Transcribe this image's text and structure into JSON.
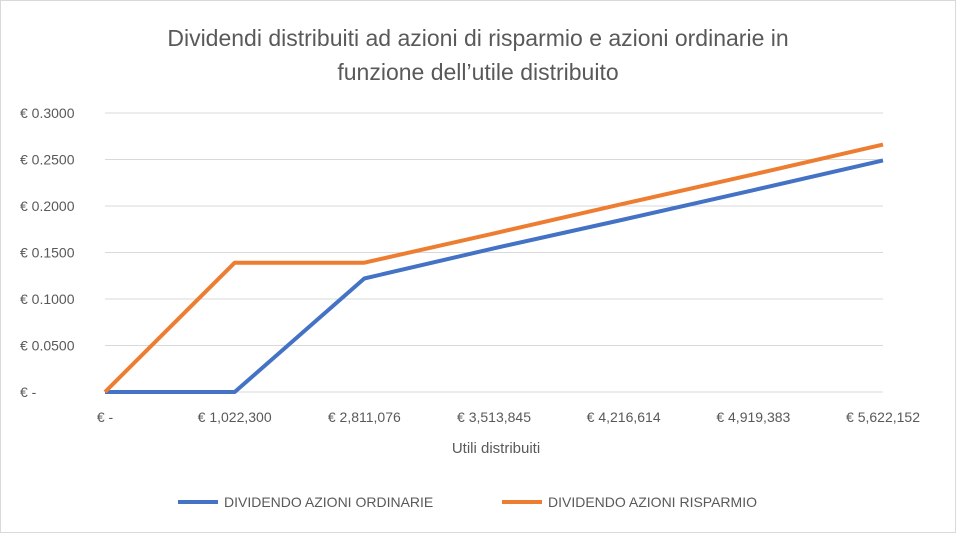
{
  "chart_data": {
    "type": "line",
    "title_lines": [
      "Dividendi distribuiti ad azioni di risparmio e azioni ordinarie in",
      "funzione dell’utile distribuito"
    ],
    "xlabel": "Utili distribuiti",
    "ylabel": "",
    "categories": [
      "€ -",
      "€ 1,022,300",
      "€ 2,811,076",
      "€ 3,513,845",
      "€ 4,216,614",
      "€ 4,919,383",
      "€ 5,622,152"
    ],
    "y_ticks": [
      "€ -",
      "€ 0.0500",
      "€ 0.1000",
      "€ 0.1500",
      "€ 0.2000",
      "€ 0.2500",
      "€ 0.3000"
    ],
    "ylim": [
      0,
      0.3
    ],
    "grid": true,
    "legend_position": "bottom",
    "series": [
      {
        "name": "DIVIDENDO AZIONI ORDINARIE",
        "color": "#4472c4",
        "values": [
          0,
          0,
          0.122,
          0.1545,
          0.1855,
          0.217,
          0.249
        ]
      },
      {
        "name": "DIVIDENDO AZIONI RISPARMIO",
        "color": "#ed7d31",
        "values": [
          0,
          0.139,
          0.139,
          0.1705,
          0.2025,
          0.234,
          0.266
        ]
      }
    ]
  }
}
